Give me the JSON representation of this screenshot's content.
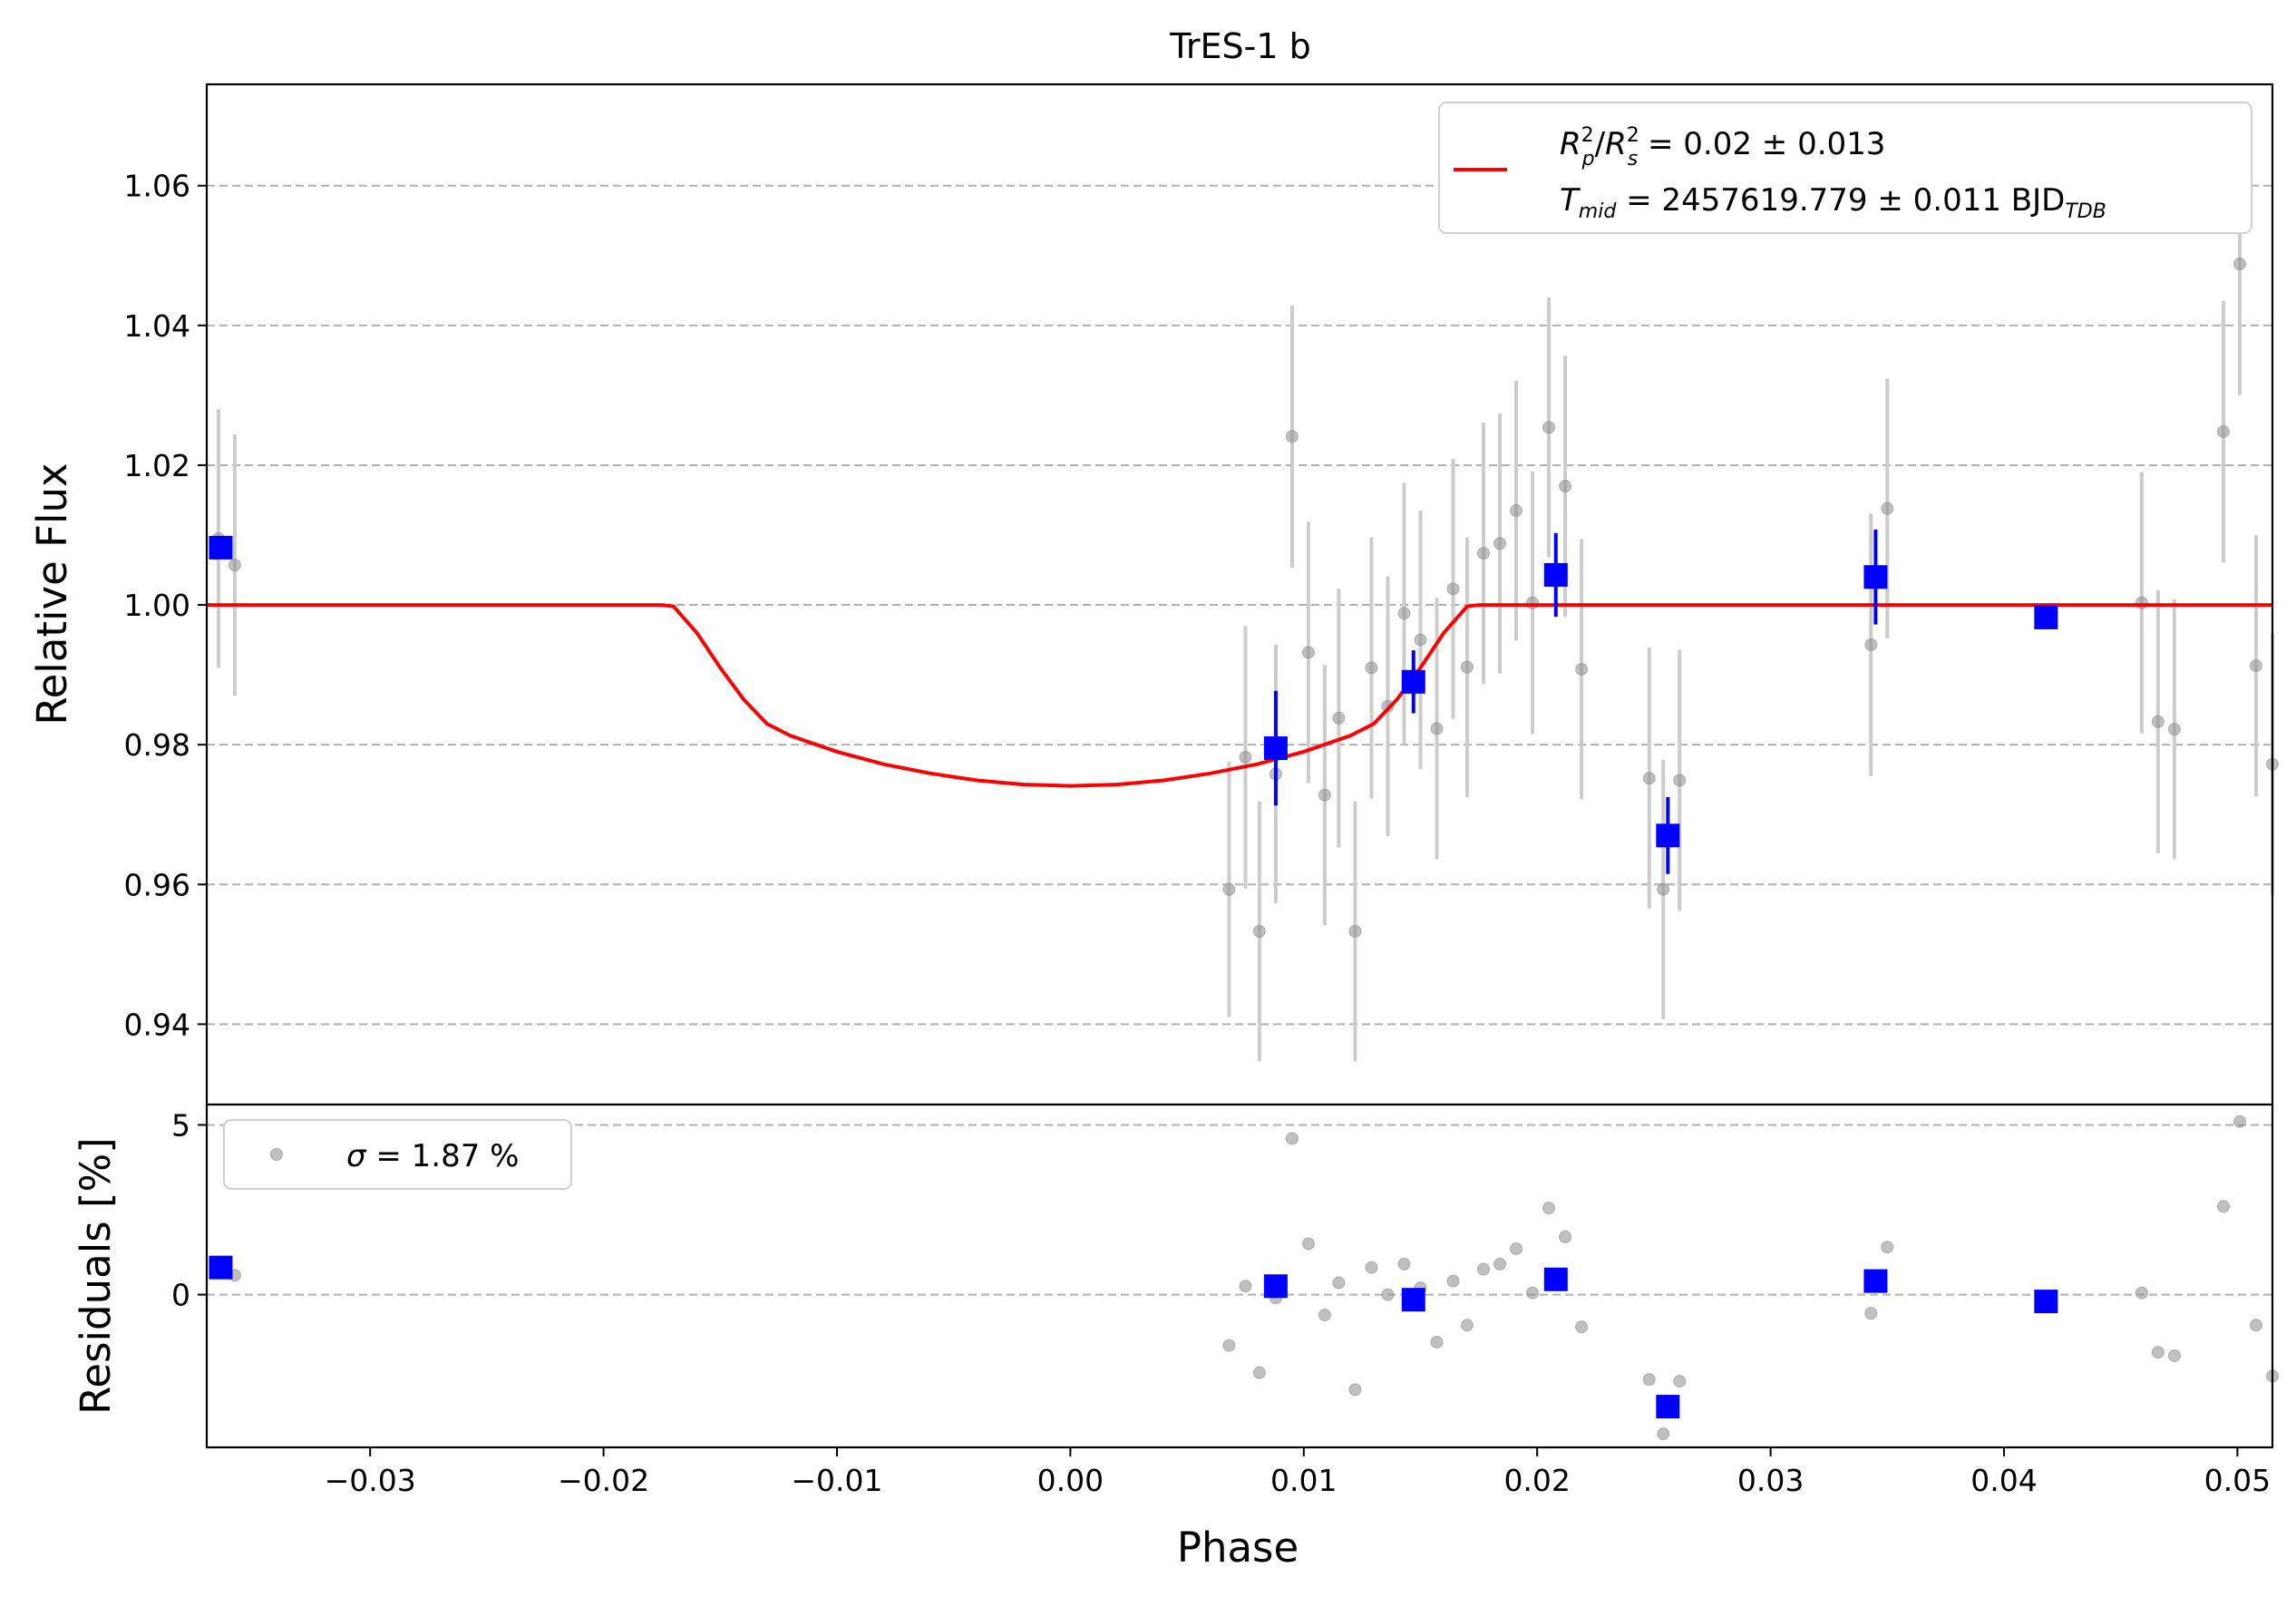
{
  "chart_data": {
    "type": "scatter",
    "title": "TrES-1 b",
    "xlabel": "Phase",
    "top_panel": {
      "ylabel": "Relative Flux",
      "xlim": [
        -0.037,
        0.0515
      ],
      "ylim": [
        0.9285,
        1.0745
      ],
      "yticks": [
        0.94,
        0.96,
        0.98,
        1.0,
        1.02,
        1.04,
        1.06
      ],
      "ytick_labels": [
        "0.94",
        "0.96",
        "0.98",
        "1.00",
        "1.02",
        "1.04",
        "1.06"
      ],
      "grid": "horizontal dashed",
      "legend": {
        "placement": "top-right",
        "line1": "Rp²/Rs² = 0.02 ± 0.013",
        "line2": "Tmid = 2457619.779 ± 0.011 BJD_TDB",
        "line1_parts": {
          "a": "R",
          "a_sup": "2",
          "a_sub": "p",
          "slash": "/",
          "b": "R",
          "b_sup": "2",
          "b_sub": "s",
          "rest": " = 0.02 ± 0.013"
        },
        "line2_parts": {
          "a": "T",
          "a_sub": "mid",
          "rest": " = 2457619.779 ± 0.011 BJD",
          "b_sub": "TDB"
        }
      },
      "model": {
        "color": "#ff0000",
        "points": [
          [
            -0.037,
            1.0
          ],
          [
            -0.0175,
            1.0
          ],
          [
            -0.017,
            0.9998
          ],
          [
            -0.016,
            0.996
          ],
          [
            -0.015,
            0.991
          ],
          [
            -0.014,
            0.9865
          ],
          [
            -0.013,
            0.983
          ],
          [
            -0.012,
            0.9813
          ],
          [
            -0.01,
            0.979
          ],
          [
            -0.008,
            0.9772
          ],
          [
            -0.006,
            0.9759
          ],
          [
            -0.004,
            0.9749
          ],
          [
            -0.002,
            0.9743
          ],
          [
            0.0,
            0.9741
          ],
          [
            0.002,
            0.9743
          ],
          [
            0.004,
            0.9749
          ],
          [
            0.006,
            0.9759
          ],
          [
            0.008,
            0.9772
          ],
          [
            0.01,
            0.979
          ],
          [
            0.012,
            0.9813
          ],
          [
            0.013,
            0.983
          ],
          [
            0.014,
            0.9865
          ],
          [
            0.015,
            0.991
          ],
          [
            0.016,
            0.996
          ],
          [
            0.017,
            0.9998
          ],
          [
            0.0175,
            1.0
          ],
          [
            0.0515,
            1.0
          ]
        ]
      },
      "raw_points": [
        {
          "x": -0.0365,
          "y": 1.0095,
          "err": 0.0185
        },
        {
          "x": -0.0358,
          "y": 1.0057,
          "err": 0.0187
        },
        {
          "x": 0.0068,
          "y": 0.9593,
          "err": 0.0183
        },
        {
          "x": 0.0075,
          "y": 0.9782,
          "err": 0.0188
        },
        {
          "x": 0.0081,
          "y": 0.9533,
          "err": 0.0186
        },
        {
          "x": 0.0088,
          "y": 0.9758,
          "err": 0.0185
        },
        {
          "x": 0.0095,
          "y": 1.0241,
          "err": 0.0188
        },
        {
          "x": 0.0102,
          "y": 0.9932,
          "err": 0.0187
        },
        {
          "x": 0.0109,
          "y": 0.9728,
          "err": 0.0186
        },
        {
          "x": 0.0115,
          "y": 0.9838,
          "err": 0.0185
        },
        {
          "x": 0.0122,
          "y": 0.9533,
          "err": 0.0186
        },
        {
          "x": 0.0129,
          "y": 0.991,
          "err": 0.0187
        },
        {
          "x": 0.0136,
          "y": 0.9855,
          "err": 0.0186
        },
        {
          "x": 0.0143,
          "y": 0.9988,
          "err": 0.0187
        },
        {
          "x": 0.015,
          "y": 0.995,
          "err": 0.0185
        },
        {
          "x": 0.0157,
          "y": 0.9823,
          "err": 0.0187
        },
        {
          "x": 0.0164,
          "y": 1.0023,
          "err": 0.0186
        },
        {
          "x": 0.017,
          "y": 0.9911,
          "err": 0.0186
        },
        {
          "x": 0.0177,
          "y": 1.0074,
          "err": 0.0187
        },
        {
          "x": 0.0184,
          "y": 1.0088,
          "err": 0.0186
        },
        {
          "x": 0.0191,
          "y": 1.0135,
          "err": 0.0186
        },
        {
          "x": 0.0198,
          "y": 1.0003,
          "err": 0.0188
        },
        {
          "x": 0.0205,
          "y": 1.0254,
          "err": 0.0186
        },
        {
          "x": 0.0212,
          "y": 1.017,
          "err": 0.0187
        },
        {
          "x": 0.0219,
          "y": 0.9908,
          "err": 0.0186
        },
        {
          "x": 0.0248,
          "y": 0.9752,
          "err": 0.0187
        },
        {
          "x": 0.0254,
          "y": 0.9593,
          "err": 0.0186
        },
        {
          "x": 0.0261,
          "y": 0.9749,
          "err": 0.0187
        },
        {
          "x": 0.0343,
          "y": 0.9943,
          "err": 0.0188
        },
        {
          "x": 0.035,
          "y": 1.0138,
          "err": 0.0186
        },
        {
          "x": 0.0459,
          "y": 1.0003,
          "err": 0.0187
        },
        {
          "x": 0.0466,
          "y": 0.9833,
          "err": 0.0188
        },
        {
          "x": 0.0473,
          "y": 0.9822,
          "err": 0.0186
        },
        {
          "x": 0.0494,
          "y": 1.0248,
          "err": 0.0187
        },
        {
          "x": 0.0501,
          "y": 1.0488,
          "err": 0.0188
        },
        {
          "x": 0.0508,
          "y": 0.9913,
          "err": 0.0187
        },
        {
          "x": 0.0515,
          "y": 0.9772,
          "err": 0.0187
        }
      ],
      "binned_points": [
        {
          "x": -0.0364,
          "y": 1.0082,
          "err": 0.001
        },
        {
          "x": 0.0088,
          "y": 0.9795,
          "err": 0.0082
        },
        {
          "x": 0.0147,
          "y": 0.989,
          "err": 0.0045
        },
        {
          "x": 0.0208,
          "y": 1.0043,
          "err": 0.006
        },
        {
          "x": 0.0256,
          "y": 0.967,
          "err": 0.0055
        },
        {
          "x": 0.0345,
          "y": 1.004,
          "err": 0.0068
        },
        {
          "x": 0.0418,
          "y": 0.9982,
          "err": 0.001
        }
      ]
    },
    "bottom_panel": {
      "ylabel": "Residuals [%]",
      "xlim": [
        -0.037,
        0.0515
      ],
      "ylim": [
        -4.5,
        5.6
      ],
      "yticks": [
        0,
        5
      ],
      "ytick_labels": [
        "0",
        "5"
      ],
      "xticks": [
        -0.03,
        -0.02,
        -0.01,
        0.0,
        0.01,
        0.02,
        0.03,
        0.04,
        0.05
      ],
      "xtick_labels": [
        "−0.03",
        "−0.02",
        "−0.01",
        "0.00",
        "0.01",
        "0.02",
        "0.03",
        "0.04",
        "0.05"
      ],
      "grid": "horizontal dashed",
      "legend": {
        "placement": "top-left",
        "label": "σ = 1.87 %",
        "sigma": "σ",
        "rest": " = 1.87 %"
      },
      "raw_points": [
        {
          "x": -0.0358,
          "y": 0.57
        },
        {
          "x": 0.0068,
          "y": -1.5
        },
        {
          "x": 0.0075,
          "y": 0.25
        },
        {
          "x": 0.0081,
          "y": -2.3
        },
        {
          "x": 0.0088,
          "y": -0.1
        },
        {
          "x": 0.0095,
          "y": 4.6
        },
        {
          "x": 0.0102,
          "y": 1.5
        },
        {
          "x": 0.0109,
          "y": -0.6
        },
        {
          "x": 0.0115,
          "y": 0.35
        },
        {
          "x": 0.0122,
          "y": -2.8
        },
        {
          "x": 0.0129,
          "y": 0.8
        },
        {
          "x": 0.0136,
          "y": 0.0
        },
        {
          "x": 0.0143,
          "y": 0.9
        },
        {
          "x": 0.015,
          "y": 0.2
        },
        {
          "x": 0.0157,
          "y": -1.4
        },
        {
          "x": 0.0164,
          "y": 0.4
        },
        {
          "x": 0.017,
          "y": -0.9
        },
        {
          "x": 0.0177,
          "y": 0.75
        },
        {
          "x": 0.0184,
          "y": 0.9
        },
        {
          "x": 0.0191,
          "y": 1.35
        },
        {
          "x": 0.0198,
          "y": 0.05
        },
        {
          "x": 0.0205,
          "y": 2.55
        },
        {
          "x": 0.0212,
          "y": 1.7
        },
        {
          "x": 0.0219,
          "y": -0.95
        },
        {
          "x": 0.0248,
          "y": -2.5
        },
        {
          "x": 0.0254,
          "y": -4.1
        },
        {
          "x": 0.0261,
          "y": -2.55
        },
        {
          "x": 0.0343,
          "y": -0.55
        },
        {
          "x": 0.035,
          "y": 1.4
        },
        {
          "x": 0.0459,
          "y": 0.05
        },
        {
          "x": 0.0466,
          "y": -1.7
        },
        {
          "x": 0.0473,
          "y": -1.8
        },
        {
          "x": 0.0494,
          "y": 2.6
        },
        {
          "x": 0.0501,
          "y": 5.1
        },
        {
          "x": 0.0508,
          "y": -0.9
        },
        {
          "x": 0.0515,
          "y": -2.4
        }
      ],
      "binned_points": [
        {
          "x": -0.0364,
          "y": 0.8
        },
        {
          "x": 0.0088,
          "y": 0.25
        },
        {
          "x": 0.0147,
          "y": -0.15
        },
        {
          "x": 0.0208,
          "y": 0.45
        },
        {
          "x": 0.0256,
          "y": -3.3
        },
        {
          "x": 0.0345,
          "y": 0.4
        },
        {
          "x": 0.0418,
          "y": -0.2
        }
      ]
    },
    "colors": {
      "model": "#ff0000",
      "binned": "#0000ff",
      "raw_point": "#8c8c8c",
      "raw_errbar": "#cccccc",
      "grid": "#b0b0b0"
    }
  }
}
